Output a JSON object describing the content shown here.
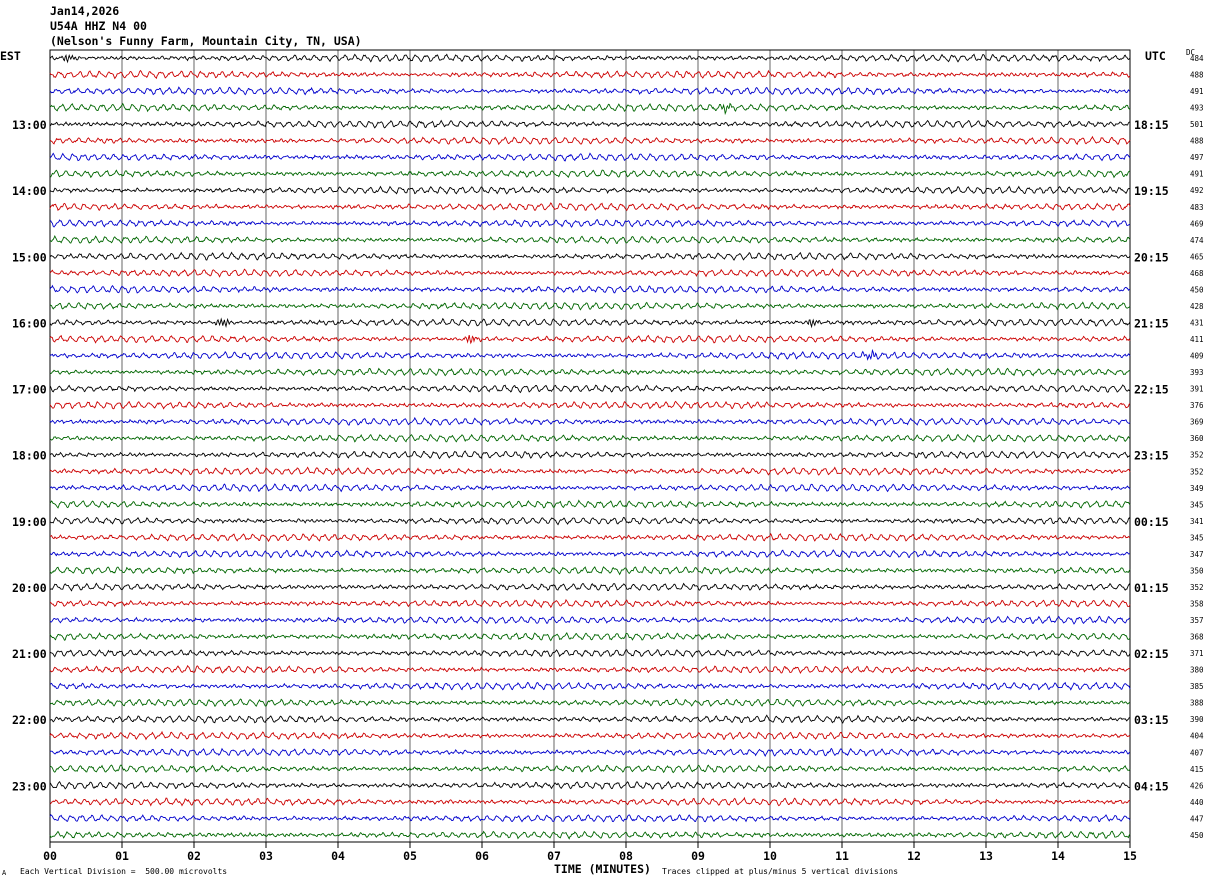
{
  "header": {
    "date": "Jan14,2026",
    "station": "U54A HHZ N4 00",
    "location": "(Nelson's Funny Farm, Mountain City, TN, USA)"
  },
  "tz_left": "EST",
  "tz_right": "UTC",
  "dc_label": "DC",
  "footer": {
    "mark": "A",
    "left": "Each Vertical Division =  500.00 microvolts",
    "xlabel": "TIME (MINUTES)",
    "right": "Traces clipped at plus/minus 5 vertical divisions"
  },
  "colors": {
    "trace_cycle": [
      "#000000",
      "#cc0000",
      "#0000cc",
      "#006600"
    ],
    "grid": "#000000"
  },
  "chart_data": {
    "type": "line",
    "title": "Jan14,2026",
    "xlabel": "TIME (MINUTES)",
    "x_range": [
      0,
      15
    ],
    "x_ticks": [
      "00",
      "01",
      "02",
      "03",
      "04",
      "05",
      "06",
      "07",
      "08",
      "09",
      "10",
      "11",
      "12",
      "13",
      "14",
      "15"
    ],
    "grid": "vertical lines each minute",
    "rows_per_hour": 4,
    "row_count": 48,
    "left_hour_labels": [
      "13:00",
      "14:00",
      "15:00",
      "16:00",
      "17:00",
      "18:00",
      "19:00",
      "20:00",
      "21:00",
      "22:00",
      "23:00"
    ],
    "right_hour_labels": [
      "18:15",
      "19:15",
      "20:15",
      "21:15",
      "22:15",
      "23:15",
      "00:15",
      "01:15",
      "02:15",
      "03:15",
      "04:15"
    ],
    "dc_offsets": [
      484,
      488,
      491,
      493,
      501,
      488,
      497,
      491,
      492,
      483,
      469,
      474,
      465,
      468,
      450,
      428,
      431,
      411,
      409,
      393,
      391,
      376,
      369,
      360,
      352,
      352,
      349,
      345,
      341,
      345,
      347,
      350,
      352,
      358,
      357,
      368,
      371,
      380,
      385,
      388,
      390,
      404,
      407,
      415,
      426,
      440,
      447,
      450
    ],
    "bursts": [
      {
        "row": 0,
        "minute": 0.25
      },
      {
        "row": 3,
        "minute": 9.4
      },
      {
        "row": 16,
        "minute": 2.4
      },
      {
        "row": 16,
        "minute": 10.6
      },
      {
        "row": 17,
        "minute": 5.85
      },
      {
        "row": 18,
        "minute": 11.4
      }
    ]
  }
}
